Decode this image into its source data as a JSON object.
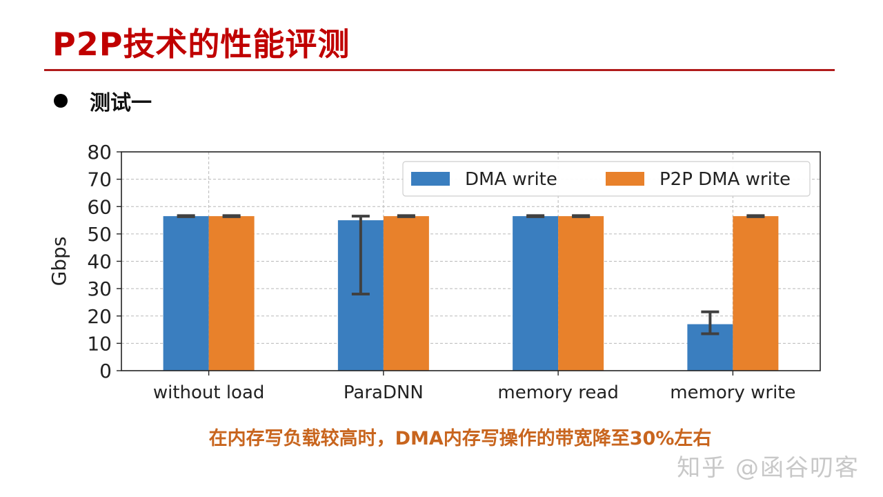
{
  "slide": {
    "title": "P2P技术的性能评测",
    "bullet": "测试一",
    "conclusion": "在内存写负载较高时，DMA内存写操作的带宽降至30%左右",
    "watermark": "知乎 @函谷叨客"
  },
  "colors": {
    "title": "#c00000",
    "rule": "#b01a1a",
    "conclusion": "#c8651e",
    "series_dma": "#3a7ebf",
    "series_p2p": "#e8812b",
    "error_bar": "#404040"
  },
  "chart_data": {
    "type": "bar",
    "categories": [
      "without load",
      "ParaDNN",
      "memory read",
      "memory write"
    ],
    "series": [
      {
        "name": "DMA write",
        "values": [
          56.5,
          55,
          56.5,
          17
        ],
        "error_low": [
          56.3,
          28,
          56.3,
          13.5
        ],
        "error_high": [
          56.7,
          56.5,
          56.7,
          21.5
        ]
      },
      {
        "name": "P2P DMA write",
        "values": [
          56.5,
          56.5,
          56.5,
          56.5
        ],
        "error_low": [
          56.3,
          56.3,
          56.3,
          56.3
        ],
        "error_high": [
          56.7,
          56.7,
          56.7,
          56.7
        ]
      }
    ],
    "xlabel": "",
    "ylabel": "Gbps",
    "ylim": [
      0,
      80
    ],
    "yticks": [
      0,
      10,
      20,
      30,
      40,
      50,
      60,
      70,
      80
    ],
    "grid": true,
    "legend_position": "top-right"
  }
}
